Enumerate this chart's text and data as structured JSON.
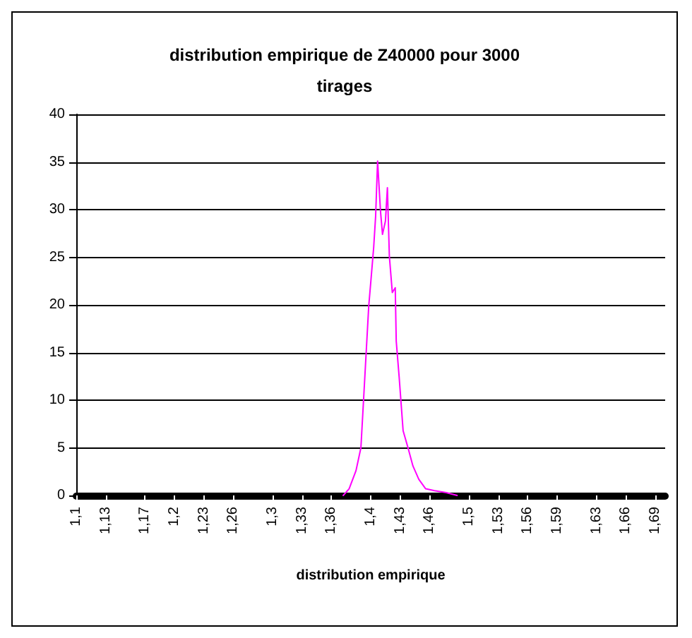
{
  "chart_data": {
    "type": "line",
    "title": "distribution empirique de Z40000 pour 3000\ntirages",
    "xlabel": "distribution empirique",
    "x": [
      1.372,
      1.378,
      1.385,
      1.39,
      1.392,
      1.395,
      1.398,
      1.4,
      1.403,
      1.405,
      1.407,
      1.41,
      1.412,
      1.415,
      1.417,
      1.419,
      1.422,
      1.425,
      1.426,
      1.429,
      1.431,
      1.433,
      1.438,
      1.443,
      1.449,
      1.456,
      1.465,
      1.477,
      1.488
    ],
    "series": [
      {
        "color": "#ff00ff",
        "values": [
          0,
          0.7,
          2.6,
          5.0,
          8.7,
          14.3,
          19.9,
          22.3,
          26.0,
          29.3,
          35.1,
          29.8,
          27.4,
          28.8,
          32.3,
          25.1,
          21.3,
          21.8,
          16.2,
          12.4,
          9.6,
          6.8,
          5.0,
          3.1,
          1.7,
          0.7,
          0.5,
          0.3,
          0
        ]
      }
    ],
    "xlim": [
      1.1,
      1.7
    ],
    "xticks": [
      {
        "value": 1.1,
        "label": "1,1"
      },
      {
        "value": 1.13,
        "label": "1,13"
      },
      {
        "value": 1.17,
        "label": "1,17"
      },
      {
        "value": 1.2,
        "label": "1,2"
      },
      {
        "value": 1.23,
        "label": "1,23"
      },
      {
        "value": 1.26,
        "label": "1,26"
      },
      {
        "value": 1.3,
        "label": "1,3"
      },
      {
        "value": 1.33,
        "label": "1,33"
      },
      {
        "value": 1.36,
        "label": "1,36"
      },
      {
        "value": 1.4,
        "label": "1,4"
      },
      {
        "value": 1.43,
        "label": "1,43"
      },
      {
        "value": 1.46,
        "label": "1,46"
      },
      {
        "value": 1.5,
        "label": "1,5"
      },
      {
        "value": 1.53,
        "label": "1,53"
      },
      {
        "value": 1.56,
        "label": "1,56"
      },
      {
        "value": 1.59,
        "label": "1,59"
      },
      {
        "value": 1.63,
        "label": "1,63"
      },
      {
        "value": 1.66,
        "label": "1,66"
      },
      {
        "value": 1.69,
        "label": "1,69"
      }
    ],
    "ylim": [
      0,
      40
    ],
    "yticks": [
      0,
      5,
      10,
      15,
      20,
      25,
      30,
      35,
      40
    ],
    "grid": "y",
    "marker": "none",
    "line_style": "solid"
  }
}
